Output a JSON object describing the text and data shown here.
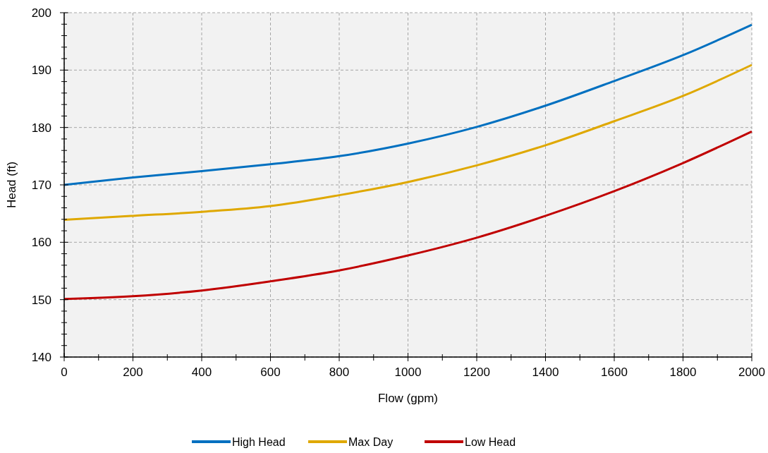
{
  "chart_data": {
    "type": "line",
    "xlabel": "Flow (gpm)",
    "ylabel": "Head (ft)",
    "x": [
      0,
      200,
      400,
      600,
      800,
      1000,
      1200,
      1400,
      1600,
      1800,
      2000
    ],
    "series": [
      {
        "name": "High Head",
        "color": "#0070c0",
        "values": [
          170,
          171.3,
          172.4,
          173.6,
          175,
          177.2,
          180.1,
          183.8,
          188.1,
          192.6,
          197.9
        ]
      },
      {
        "name": "Max Day",
        "color": "#dfa800",
        "values": [
          163.9,
          164.6,
          165.3,
          166.3,
          168.2,
          170.5,
          173.4,
          176.9,
          181.1,
          185.5,
          190.9
        ]
      },
      {
        "name": "Low Head",
        "color": "#c00000",
        "values": [
          150.1,
          150.6,
          151.6,
          153.2,
          155.1,
          157.7,
          160.8,
          164.6,
          168.9,
          173.8,
          179.3
        ]
      }
    ],
    "xlim": [
      0,
      2000
    ],
    "xticks": [
      0,
      {
        "value": 100,
        "label": null
      },
      200,
      {
        "value": 300,
        "label": null
      },
      400,
      {
        "value": 500,
        "label": null
      },
      600,
      {
        "value": 700,
        "label": null
      },
      800,
      {
        "value": 900,
        "label": null
      },
      1000,
      {
        "value": 1100,
        "label": null
      },
      1200,
      {
        "value": 1300,
        "label": null
      },
      1400,
      {
        "value": 1500,
        "label": null
      },
      1600,
      {
        "value": 1700,
        "label": null
      },
      1800,
      {
        "value": 1900,
        "label": null
      },
      2000
    ],
    "ylim": [
      140,
      200
    ],
    "yticks": [
      140,
      {
        "value": 142,
        "label": null
      },
      {
        "value": 144,
        "label": null
      },
      {
        "value": 146,
        "label": null
      },
      {
        "value": 148,
        "label": null
      },
      150,
      {
        "value": 152,
        "label": null
      },
      {
        "value": 154,
        "label": null
      },
      {
        "value": 156,
        "label": null
      },
      {
        "value": 158,
        "label": null
      },
      160,
      {
        "value": 162,
        "label": null
      },
      {
        "value": 164,
        "label": null
      },
      {
        "value": 166,
        "label": null
      },
      {
        "value": 168,
        "label": null
      },
      170,
      {
        "value": 172,
        "label": null
      },
      {
        "value": 174,
        "label": null
      },
      {
        "value": 176,
        "label": null
      },
      {
        "value": 178,
        "label": null
      },
      180,
      {
        "value": 182,
        "label": null
      },
      {
        "value": 184,
        "label": null
      },
      {
        "value": 186,
        "label": null
      },
      {
        "value": 188,
        "label": null
      },
      190,
      {
        "value": 192,
        "label": null
      },
      {
        "value": 194,
        "label": null
      },
      {
        "value": 196,
        "label": null
      },
      {
        "value": 198,
        "label": null
      },
      200
    ],
    "grid": true,
    "legend": "bottom",
    "marker": "none",
    "line_style": "solid"
  }
}
